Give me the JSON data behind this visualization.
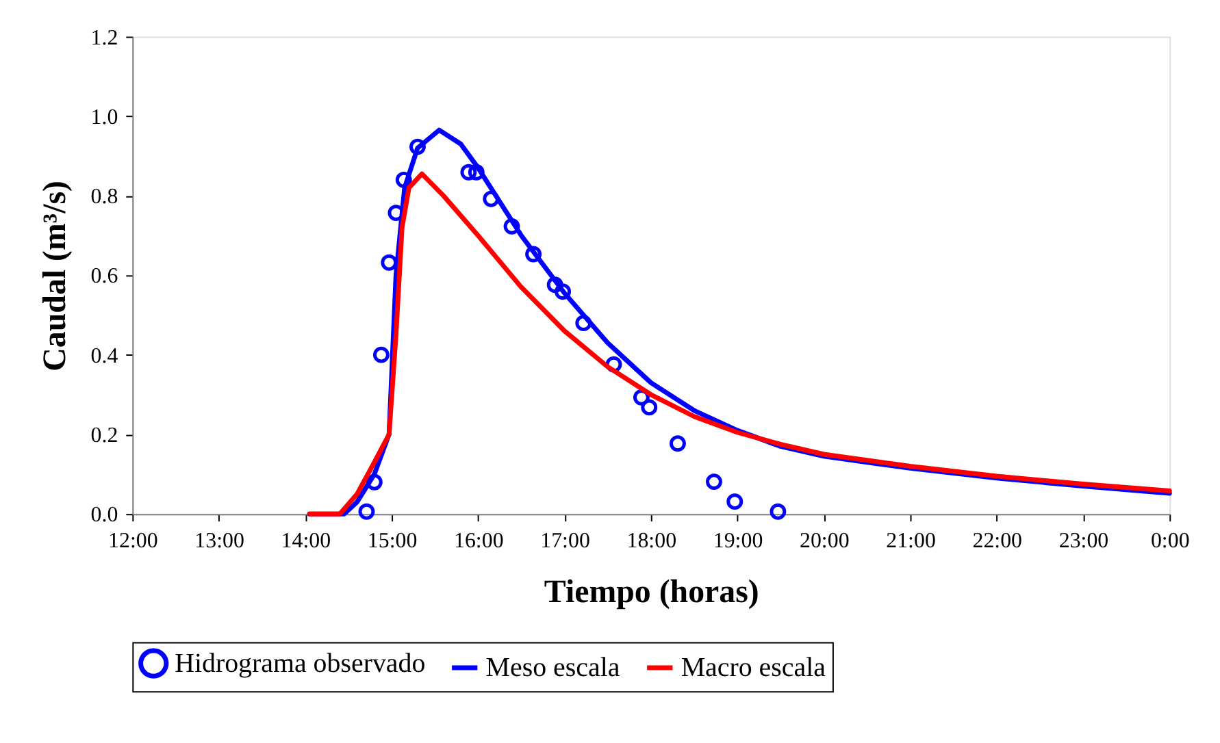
{
  "chart_data": {
    "type": "line",
    "xlabel": "Tiempo (horas)",
    "ylabel": "Caudal (m³/s)",
    "xlim": [
      12,
      24
    ],
    "xticks": [
      {
        "value": 12,
        "label": "12:00"
      },
      {
        "value": 13,
        "label": "13:00"
      },
      {
        "value": 14,
        "label": "14:00"
      },
      {
        "value": 15,
        "label": "15:00"
      },
      {
        "value": 16,
        "label": "16:00"
      },
      {
        "value": 17,
        "label": "17:00"
      },
      {
        "value": 18,
        "label": "18:00"
      },
      {
        "value": 19,
        "label": "19:00"
      },
      {
        "value": 20,
        "label": "20:00"
      },
      {
        "value": 21,
        "label": "21:00"
      },
      {
        "value": 22,
        "label": "22:00"
      },
      {
        "value": 23,
        "label": "23:00"
      },
      {
        "value": 24,
        "label": "0:00"
      }
    ],
    "ylim": [
      0,
      1.2
    ],
    "yticks": [
      {
        "value": 0,
        "label": "0.0"
      },
      {
        "value": 0.2,
        "label": "0.2"
      },
      {
        "value": 0.4,
        "label": "0.4"
      },
      {
        "value": 0.6,
        "label": "0.6"
      },
      {
        "value": 0.8,
        "label": "0.8"
      },
      {
        "value": 1,
        "label": "1.0"
      },
      {
        "value": 1.2,
        "label": "1.2"
      }
    ],
    "grid": false,
    "legend": "bottom",
    "series": [
      {
        "name": "Hidrograma observado",
        "type": "scatter",
        "marker": "circle",
        "color": "#0000ff",
        "x": [
          14.71,
          14.8,
          14.88,
          14.97,
          15.05,
          15.14,
          15.3,
          15.89,
          15.98,
          16.15,
          16.39,
          16.64,
          16.89,
          16.98,
          17.22,
          17.57,
          17.89,
          17.98,
          18.31,
          18.73,
          18.97,
          19.47
        ],
        "values": [
          0.006,
          0.08,
          0.4,
          0.632,
          0.757,
          0.84,
          0.923,
          0.859,
          0.859,
          0.792,
          0.723,
          0.653,
          0.576,
          0.559,
          0.48,
          0.376,
          0.293,
          0.268,
          0.177,
          0.081,
          0.031,
          0.006
        ]
      },
      {
        "name": "Meso escala",
        "type": "line",
        "color": "#0000ff",
        "x": [
          14.05,
          14.45,
          14.6,
          14.8,
          14.97,
          15.05,
          15.15,
          15.3,
          15.55,
          15.8,
          16.0,
          16.5,
          17.0,
          17.5,
          18.0,
          18.5,
          19.0,
          19.5,
          20.0,
          21.0,
          22.0,
          23.0,
          24.0
        ],
        "values": [
          0,
          0,
          0.03,
          0.1,
          0.2,
          0.6,
          0.82,
          0.92,
          0.965,
          0.93,
          0.87,
          0.7,
          0.555,
          0.43,
          0.33,
          0.26,
          0.21,
          0.17,
          0.145,
          0.115,
          0.09,
          0.07,
          0.052
        ]
      },
      {
        "name": "Macro escala",
        "type": "line",
        "color": "#ff0000",
        "x": [
          14.05,
          14.4,
          14.6,
          14.8,
          14.97,
          15.05,
          15.12,
          15.2,
          15.35,
          15.6,
          16.0,
          16.5,
          17.0,
          17.5,
          18.0,
          18.5,
          19.0,
          19.5,
          20.0,
          21.0,
          22.0,
          23.0,
          24.0
        ],
        "values": [
          0,
          0,
          0.05,
          0.13,
          0.2,
          0.45,
          0.72,
          0.82,
          0.855,
          0.8,
          0.7,
          0.57,
          0.46,
          0.37,
          0.3,
          0.245,
          0.205,
          0.175,
          0.15,
          0.12,
          0.095,
          0.075,
          0.058
        ]
      }
    ]
  }
}
